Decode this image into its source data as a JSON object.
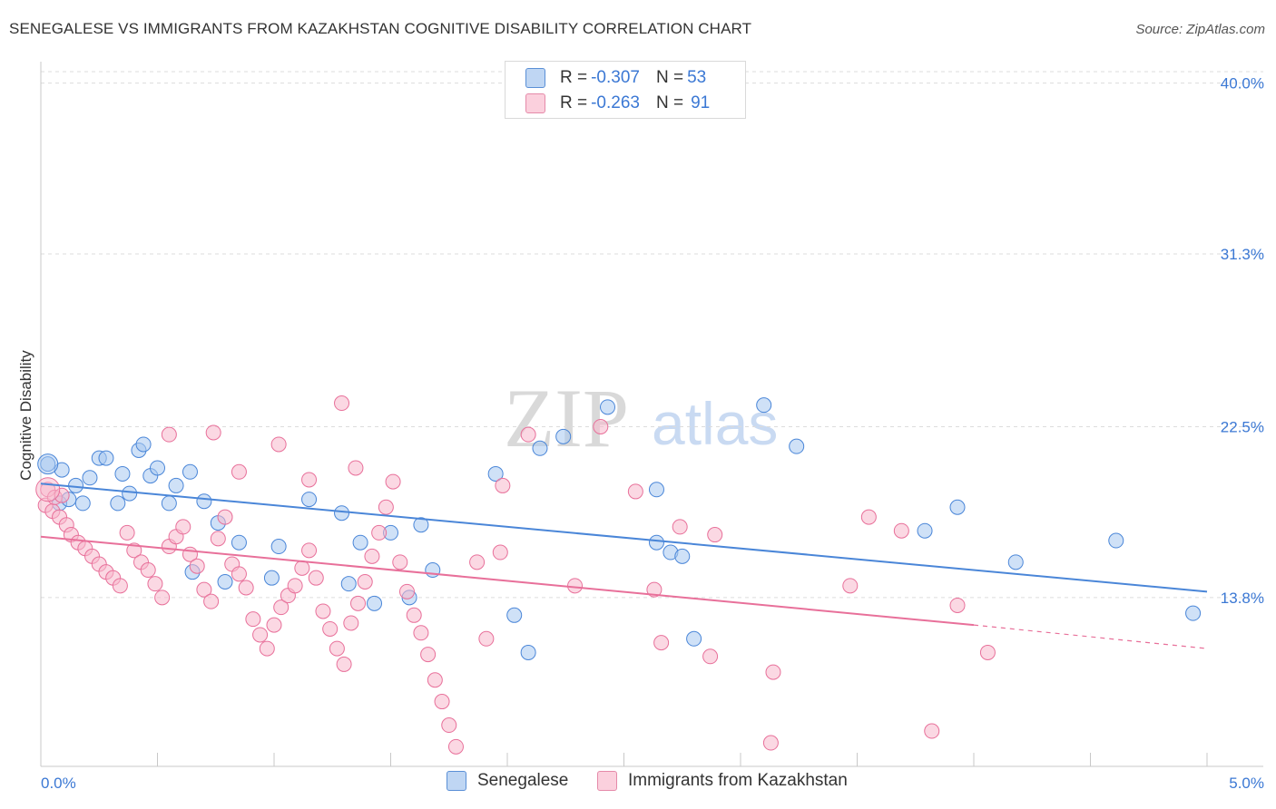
{
  "header": {
    "title": "SENEGALESE VS IMMIGRANTS FROM KAZAKHSTAN COGNITIVE DISABILITY CORRELATION CHART",
    "source": "Source: ZipAtlas.com"
  },
  "watermark": {
    "zip": "ZIP",
    "atlas": "atlas"
  },
  "legend_top": [
    {
      "r_label": "R = ",
      "r_value": "-0.307",
      "n_label": "N = ",
      "n_value": "53",
      "color": "#a8c8f0"
    },
    {
      "r_label": "R = ",
      "r_value": "-0.263",
      "n_label": "N = ",
      "n_value": "91",
      "color": "#f7b8cc"
    }
  ],
  "chart_data": {
    "type": "scatter",
    "title": "SENEGALESE VS IMMIGRANTS FROM KAZAKHSTAN COGNITIVE DISABILITY CORRELATION CHART",
    "xlabel": "",
    "ylabel": "Cognitive Disability",
    "xlim": [
      0,
      5
    ],
    "ylim": [
      5.2,
      41.0
    ],
    "x_tick_labels": [
      "0.0%",
      "5.0%"
    ],
    "y_ticks": [
      13.8,
      22.5,
      31.3,
      40.0
    ],
    "y_tick_labels": [
      "13.8%",
      "22.5%",
      "31.3%",
      "40.0%"
    ],
    "grid": "horizontal dashed",
    "legend_position": "bottom",
    "series": [
      {
        "name": "Senegalese",
        "color": "#4a86d8",
        "fill": "#a8c8f0",
        "trend": {
          "x": [
            0.0,
            5.0
          ],
          "y": [
            19.6,
            14.1
          ]
        },
        "points": [
          [
            0.03,
            20.6
          ],
          [
            0.08,
            18.6
          ],
          [
            0.12,
            18.8
          ],
          [
            0.09,
            20.3
          ],
          [
            0.15,
            19.5
          ],
          [
            0.18,
            18.6
          ],
          [
            0.21,
            19.9
          ],
          [
            0.25,
            20.9
          ],
          [
            0.28,
            20.9
          ],
          [
            0.33,
            18.6
          ],
          [
            0.35,
            20.1
          ],
          [
            0.38,
            19.1
          ],
          [
            0.42,
            21.3
          ],
          [
            0.44,
            21.6
          ],
          [
            0.47,
            20.0
          ],
          [
            0.5,
            20.4
          ],
          [
            0.55,
            18.6
          ],
          [
            0.58,
            19.5
          ],
          [
            0.64,
            20.2
          ],
          [
            0.7,
            18.7
          ],
          [
            0.76,
            17.6
          ],
          [
            0.85,
            16.6
          ],
          [
            0.65,
            15.1
          ],
          [
            0.79,
            14.6
          ],
          [
            0.99,
            14.8
          ],
          [
            1.02,
            16.4
          ],
          [
            1.15,
            18.8
          ],
          [
            1.29,
            18.1
          ],
          [
            1.32,
            14.5
          ],
          [
            1.37,
            16.6
          ],
          [
            1.43,
            13.5
          ],
          [
            1.5,
            17.1
          ],
          [
            1.58,
            13.8
          ],
          [
            1.63,
            17.5
          ],
          [
            1.68,
            15.2
          ],
          [
            1.95,
            20.1
          ],
          [
            2.03,
            12.9
          ],
          [
            2.14,
            21.4
          ],
          [
            2.24,
            22.0
          ],
          [
            2.43,
            23.5
          ],
          [
            2.64,
            19.3
          ],
          [
            2.64,
            16.6
          ],
          [
            2.7,
            16.1
          ],
          [
            2.75,
            15.9
          ],
          [
            3.1,
            23.6
          ],
          [
            3.24,
            21.5
          ],
          [
            3.79,
            17.2
          ],
          [
            3.93,
            18.4
          ],
          [
            4.18,
            15.6
          ],
          [
            4.61,
            16.7
          ],
          [
            4.94,
            13.0
          ],
          [
            2.8,
            11.7
          ],
          [
            2.09,
            11.0
          ]
        ]
      },
      {
        "name": "Immigrants from Kazakhstan",
        "color": "#e8709a",
        "fill": "#f7b8cc",
        "trend": {
          "x": [
            0.0,
            4.0
          ],
          "y": [
            16.9,
            12.4
          ]
        },
        "trend_dashed": {
          "x": [
            4.0,
            5.0
          ],
          "y": [
            12.4,
            11.2
          ]
        },
        "points": [
          [
            0.02,
            18.5
          ],
          [
            0.05,
            18.2
          ],
          [
            0.08,
            17.9
          ],
          [
            0.11,
            17.5
          ],
          [
            0.13,
            17.0
          ],
          [
            0.16,
            16.6
          ],
          [
            0.19,
            16.3
          ],
          [
            0.22,
            15.9
          ],
          [
            0.25,
            15.5
          ],
          [
            0.28,
            15.1
          ],
          [
            0.31,
            14.8
          ],
          [
            0.34,
            14.4
          ],
          [
            0.37,
            17.1
          ],
          [
            0.4,
            16.2
          ],
          [
            0.43,
            15.6
          ],
          [
            0.46,
            15.2
          ],
          [
            0.49,
            14.5
          ],
          [
            0.52,
            13.8
          ],
          [
            0.55,
            16.4
          ],
          [
            0.58,
            16.9
          ],
          [
            0.61,
            17.4
          ],
          [
            0.64,
            16.0
          ],
          [
            0.67,
            15.4
          ],
          [
            0.7,
            14.2
          ],
          [
            0.73,
            13.6
          ],
          [
            0.76,
            16.8
          ],
          [
            0.79,
            17.9
          ],
          [
            0.82,
            15.5
          ],
          [
            0.85,
            15.0
          ],
          [
            0.88,
            14.3
          ],
          [
            0.91,
            12.7
          ],
          [
            0.94,
            11.9
          ],
          [
            0.97,
            11.2
          ],
          [
            1.0,
            12.4
          ],
          [
            1.03,
            13.3
          ],
          [
            1.06,
            13.9
          ],
          [
            1.09,
            14.4
          ],
          [
            1.12,
            15.3
          ],
          [
            1.15,
            16.2
          ],
          [
            1.18,
            14.8
          ],
          [
            1.21,
            13.1
          ],
          [
            1.24,
            12.2
          ],
          [
            1.27,
            11.2
          ],
          [
            1.3,
            10.4
          ],
          [
            1.33,
            12.5
          ],
          [
            1.36,
            13.5
          ],
          [
            1.39,
            14.6
          ],
          [
            1.42,
            15.9
          ],
          [
            1.45,
            17.1
          ],
          [
            1.48,
            18.4
          ],
          [
            1.51,
            19.7
          ],
          [
            1.54,
            15.6
          ],
          [
            1.57,
            14.1
          ],
          [
            1.6,
            12.9
          ],
          [
            1.63,
            12.0
          ],
          [
            1.66,
            10.9
          ],
          [
            1.69,
            9.6
          ],
          [
            1.72,
            8.5
          ],
          [
            1.75,
            7.3
          ],
          [
            1.78,
            6.2
          ],
          [
            0.55,
            22.1
          ],
          [
            0.74,
            22.2
          ],
          [
            0.85,
            20.2
          ],
          [
            1.02,
            21.6
          ],
          [
            1.15,
            19.8
          ],
          [
            1.29,
            23.7
          ],
          [
            1.35,
            20.4
          ],
          [
            1.87,
            15.6
          ],
          [
            1.91,
            11.7
          ],
          [
            1.97,
            16.1
          ],
          [
            1.98,
            19.5
          ],
          [
            2.09,
            22.1
          ],
          [
            2.29,
            14.4
          ],
          [
            2.4,
            22.5
          ],
          [
            2.55,
            19.2
          ],
          [
            2.63,
            14.2
          ],
          [
            2.66,
            11.5
          ],
          [
            2.74,
            17.4
          ],
          [
            2.87,
            10.8
          ],
          [
            2.89,
            17.0
          ],
          [
            3.13,
            6.4
          ],
          [
            3.14,
            10.0
          ],
          [
            3.47,
            14.4
          ],
          [
            3.55,
            17.9
          ],
          [
            3.69,
            17.2
          ],
          [
            3.82,
            7.0
          ],
          [
            3.93,
            13.4
          ],
          [
            4.06,
            11.0
          ],
          [
            0.03,
            19.3
          ],
          [
            0.06,
            18.9
          ],
          [
            0.09,
            19.0
          ]
        ]
      }
    ]
  }
}
